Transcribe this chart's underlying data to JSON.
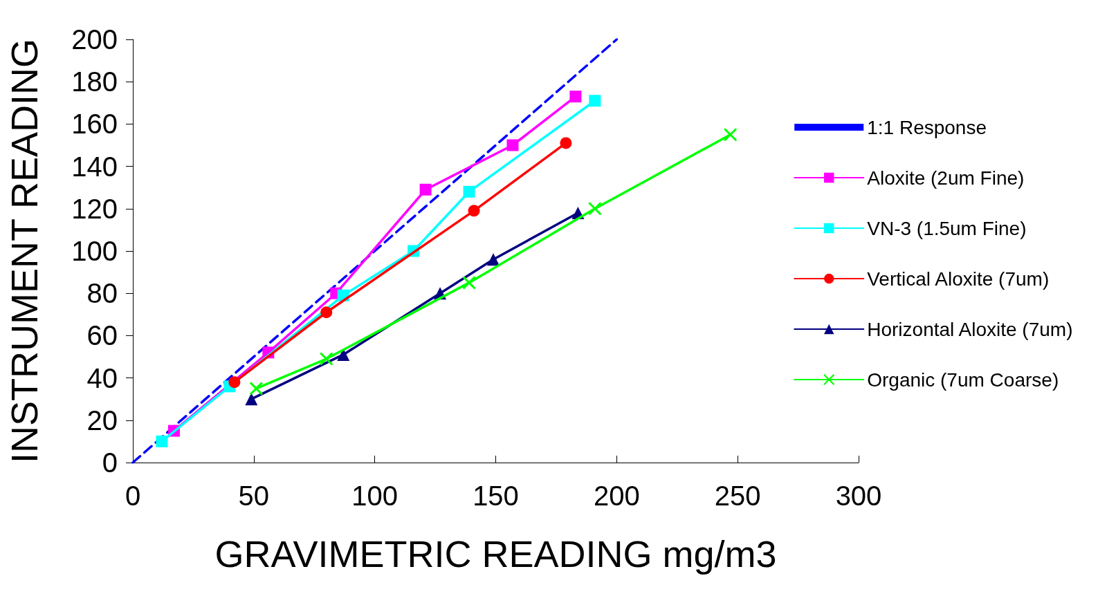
{
  "chart_data": {
    "type": "line",
    "xlabel": "GRAVIMETRIC READING mg/m3",
    "ylabel": "INSTRUMENT READING",
    "xlim": [
      0,
      300
    ],
    "xticks": [
      0,
      50,
      100,
      150,
      200,
      250,
      300
    ],
    "ylim": [
      0,
      200
    ],
    "yticks": [
      0,
      20,
      40,
      60,
      80,
      100,
      120,
      140,
      160,
      180,
      200
    ],
    "grid": false,
    "legend": "right",
    "series": [
      {
        "name": "1:1 Response",
        "color": "#0000ff",
        "x": [
          0,
          200
        ],
        "values": [
          0,
          200
        ],
        "marker": "none",
        "line_style": "dashed"
      },
      {
        "name": "Aloxite (2um Fine)",
        "color": "#ff00ff",
        "x": [
          17,
          56,
          84,
          121,
          157,
          183
        ],
        "values": [
          15,
          52,
          80,
          129,
          150,
          173
        ],
        "marker": "square",
        "line_style": "solid"
      },
      {
        "name": "VN-3 (1.5um Fine)",
        "color": "#00ffff",
        "x": [
          12,
          40,
          87,
          116,
          139,
          191
        ],
        "values": [
          10,
          36,
          79,
          100,
          128,
          171
        ],
        "marker": "square",
        "line_style": "solid"
      },
      {
        "name": "Vertical Aloxite (7um)",
        "color": "#ff0000",
        "x": [
          42,
          80,
          141,
          179
        ],
        "values": [
          38,
          71,
          119,
          151
        ],
        "marker": "circle",
        "line_style": "solid"
      },
      {
        "name": "Horizontal Aloxite (7um)",
        "color": "#000080",
        "x": [
          49,
          87,
          127,
          149,
          184
        ],
        "values": [
          30,
          51,
          80,
          96,
          118
        ],
        "marker": "triangle",
        "line_style": "solid"
      },
      {
        "name": "Organic (7um Coarse)",
        "color": "#00ff00",
        "x": [
          51,
          80,
          139,
          191,
          247
        ],
        "values": [
          35,
          49,
          85,
          120,
          155
        ],
        "marker": "cross",
        "line_style": "solid"
      }
    ]
  }
}
